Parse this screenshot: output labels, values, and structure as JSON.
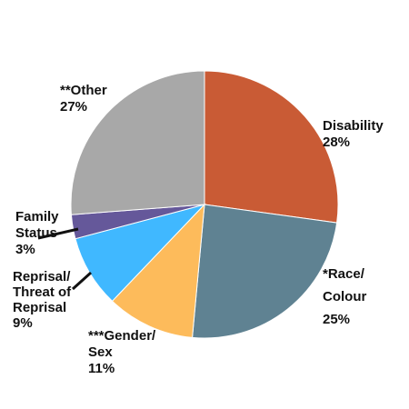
{
  "chart_data": {
    "type": "pie",
    "title": "",
    "start_angle_deg": 0,
    "direction": "clockwise",
    "slices": [
      {
        "label_lines": [
          "Disability",
          "28%"
        ],
        "value": 28,
        "color": "#c95b35"
      },
      {
        "label_lines": [
          "*Race/",
          "Colour",
          "25%"
        ],
        "value": 25,
        "color": "#5f8292"
      },
      {
        "label_lines": [
          "***Gender/",
          "Sex",
          "11%"
        ],
        "value": 11,
        "color": "#fdbb5b"
      },
      {
        "label_lines": [
          "Reprisal/",
          "Threat of",
          "Reprisal",
          "9%"
        ],
        "value": 9,
        "color": "#40b8ff"
      },
      {
        "label_lines": [
          "Family",
          "Status",
          "3%"
        ],
        "value": 3,
        "color": "#65589a"
      },
      {
        "label_lines": [
          "**Other",
          "27%"
        ],
        "value": 27,
        "color": "#a8a8a8"
      }
    ]
  }
}
